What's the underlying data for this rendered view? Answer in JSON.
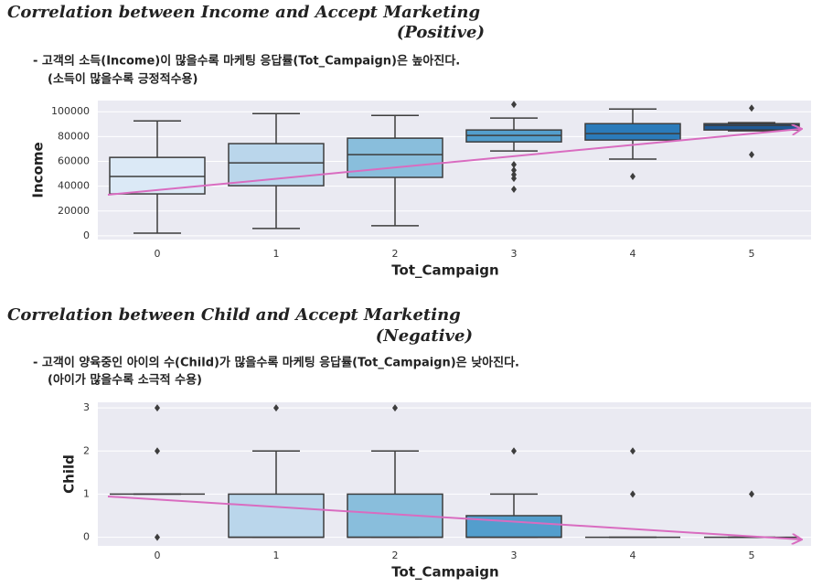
{
  "chart_data": [
    {
      "type": "box",
      "title": "Correlation between Income and Accept Marketing",
      "subtitle": "(Positive)",
      "notes": [
        "- 고객의 소득(Income)이 많을수록 마케팅 응답률(Tot_Campaign)은 높아진다.",
        "(소득이 많을수록 긍정적수용)"
      ],
      "x_label": "Tot_Campaign",
      "y_label": "Income",
      "categories": [
        "0",
        "1",
        "2",
        "3",
        "4",
        "5"
      ],
      "colors": [
        "#dbe9f6",
        "#bad6eb",
        "#89bedc",
        "#539ecd",
        "#2b7bba",
        "#1f5a96"
      ],
      "whislo": [
        2200,
        5900,
        8100,
        68400,
        61800,
        84600
      ],
      "q1": [
        33800,
        40400,
        47100,
        75700,
        77200,
        85300
      ],
      "median": [
        47800,
        58800,
        65400,
        80900,
        82400,
        89000
      ],
      "q3": [
        63200,
        74300,
        78700,
        85300,
        90400,
        90400
      ],
      "whishi": [
        92600,
        98500,
        97000,
        94900,
        102200,
        91200
      ],
      "outliers": [
        [],
        [],
        [],
        [
          105900,
          57400,
          52900,
          49300,
          46300,
          37500
        ],
        [
          47800
        ],
        [
          102900,
          65400
        ]
      ],
      "ylim": [
        -3000,
        109000
      ],
      "yticks": [
        0,
        20000,
        40000,
        60000,
        80000,
        100000
      ],
      "grid": true
    },
    {
      "type": "box",
      "title": "Correlation between Child and Accept Marketing",
      "subtitle": "(Negative)",
      "notes": [
        "- 고객이 양육중인 아이의 수(Child)가 많을수록 마케팅 응답률(Tot_Campaign)은 낮아진다.",
        "(아이가 많을수록 소극적 수용)"
      ],
      "x_label": "Tot_Campaign",
      "y_label": "Child",
      "categories": [
        "0",
        "1",
        "2",
        "3",
        "4",
        "5"
      ],
      "colors": [
        "#dbe9f6",
        "#bad6eb",
        "#89bedc",
        "#539ecd",
        "#2b7bba",
        "#1f5a96"
      ],
      "whislo": [
        1,
        0,
        0,
        0,
        0,
        0
      ],
      "q1": [
        1,
        0,
        0,
        0,
        0,
        0
      ],
      "median": [
        1,
        0,
        0,
        0,
        0,
        0
      ],
      "q3": [
        1,
        1,
        1,
        0.5,
        0,
        0
      ],
      "whishi": [
        1,
        2,
        2,
        1,
        0,
        0
      ],
      "outliers": [
        [
          0,
          2,
          3
        ],
        [
          3
        ],
        [
          3
        ],
        [
          2
        ],
        [
          1,
          2
        ],
        [
          1
        ]
      ],
      "ylim": [
        -0.2,
        3.13
      ],
      "yticks": [
        0,
        1,
        2,
        3
      ],
      "grid": true
    }
  ]
}
